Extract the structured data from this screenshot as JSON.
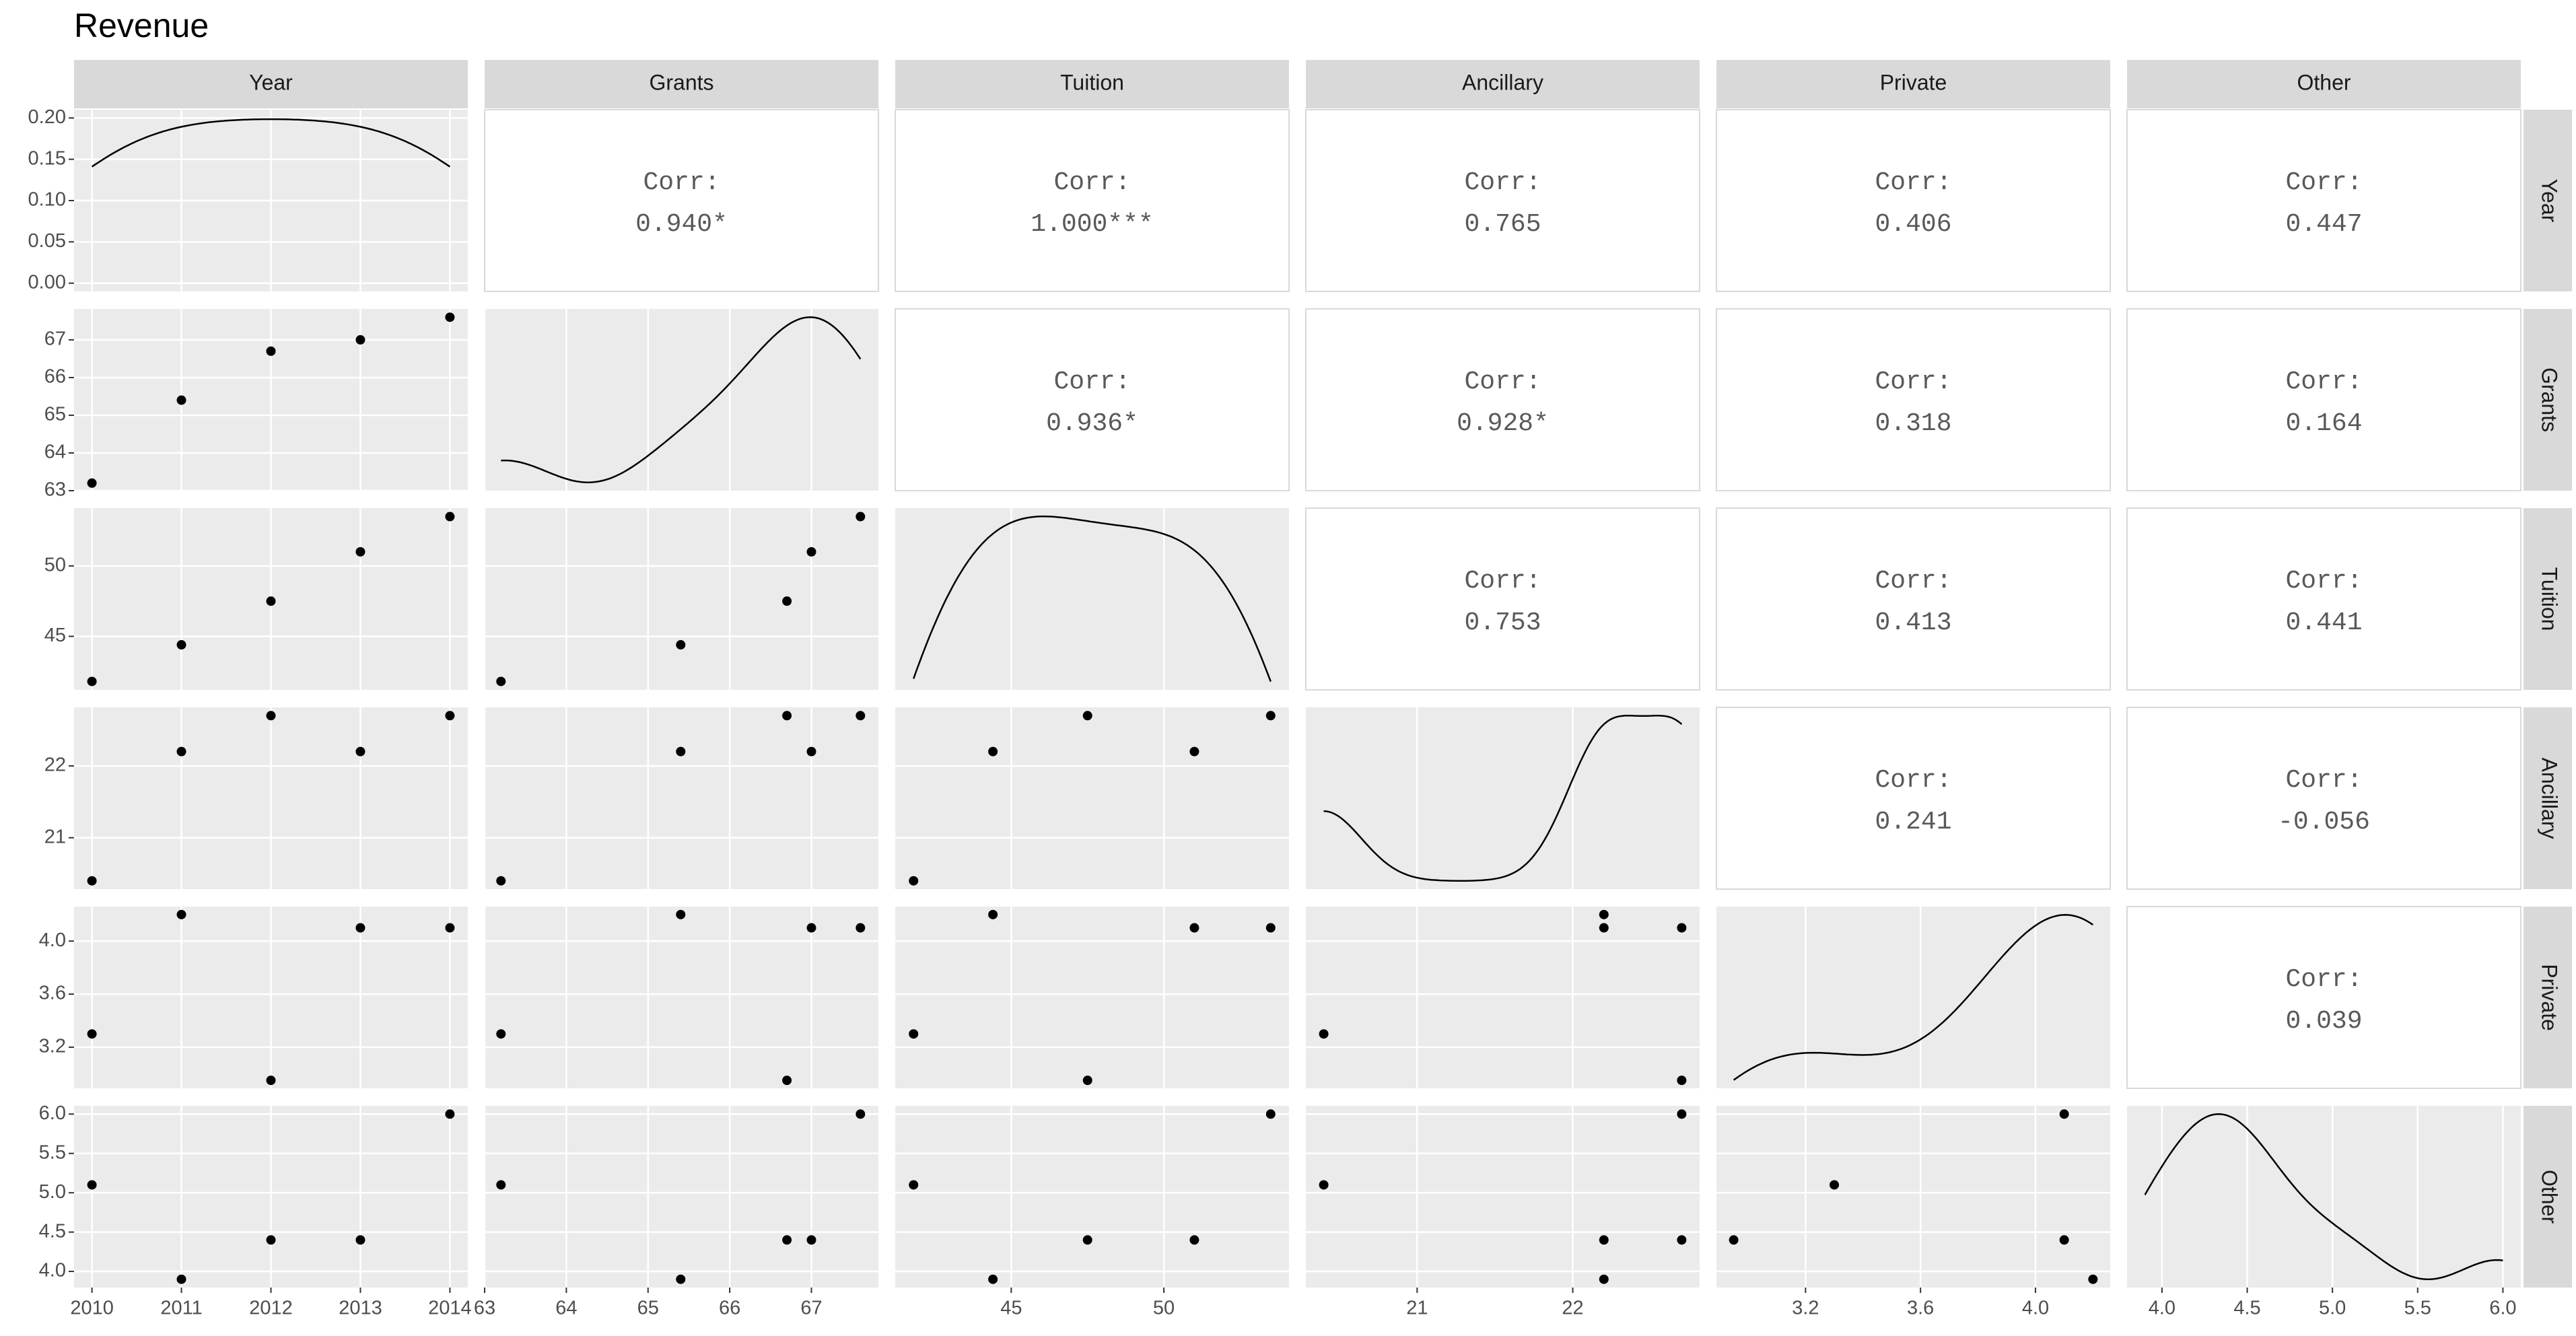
{
  "chart_data": {
    "type": "pairs",
    "title": "Revenue",
    "corr_label": "Corr:",
    "variables": [
      {
        "name": "Year",
        "values": [
          2010,
          2011,
          2012,
          2013,
          2014
        ],
        "lim": [
          2009.8,
          2014.2
        ],
        "ticks": [
          2010,
          2011,
          2012,
          2013,
          2014
        ]
      },
      {
        "name": "Grants",
        "values": [
          63.2,
          65.4,
          66.7,
          67.0,
          67.6
        ],
        "lim": [
          63.0,
          67.82
        ],
        "ticks": [
          63,
          64,
          65,
          66,
          67
        ]
      },
      {
        "name": "Tuition",
        "values": [
          41.8,
          44.4,
          47.5,
          51.0,
          53.5
        ],
        "lim": [
          41.2,
          54.1
        ],
        "ticks": [
          45,
          50
        ]
      },
      {
        "name": "Ancillary",
        "values": [
          20.4,
          22.2,
          22.7,
          22.2,
          22.7
        ],
        "lim": [
          20.285,
          22.815
        ],
        "ticks": [
          21,
          22
        ]
      },
      {
        "name": "Private",
        "values": [
          3.3,
          4.2,
          2.95,
          4.1,
          4.1
        ],
        "lim": [
          2.89,
          4.26
        ],
        "ticks": [
          3.2,
          3.6,
          {
            "value": 4,
            "label": "4.0"
          }
        ]
      },
      {
        "name": "Other",
        "values": [
          5.1,
          3.9,
          4.4,
          4.4,
          6.0
        ],
        "lim": [
          3.795,
          6.105
        ],
        "ticks": [
          {
            "value": 4,
            "label": "4.0"
          },
          4.5,
          {
            "value": 5,
            "label": "5.0"
          },
          5.5,
          {
            "value": 6,
            "label": "6.0"
          }
        ]
      }
    ],
    "density_ylim": [
      -0.01,
      0.21
    ],
    "density_yticks": [
      {
        "value": 0,
        "label": "0.00"
      },
      {
        "value": 0.05,
        "label": "0.05"
      },
      {
        "value": 0.1,
        "label": "0.10"
      },
      {
        "value": 0.15,
        "label": "0.15"
      },
      {
        "value": 0.2,
        "label": "0.20"
      }
    ],
    "correlations": [
      [
        "0.940*",
        "1.000***",
        "0.765",
        "0.406",
        "0.447"
      ],
      [
        "0.936*",
        "0.928*",
        "0.318",
        "0.164"
      ],
      [
        "0.753",
        "0.413",
        "0.441"
      ],
      [
        "0.241",
        "-0.056"
      ],
      [
        "0.039"
      ]
    ],
    "point_color": "#000000",
    "panel_color": "#ebebeb",
    "strip_color": "#d9d9d9",
    "grid": true
  }
}
